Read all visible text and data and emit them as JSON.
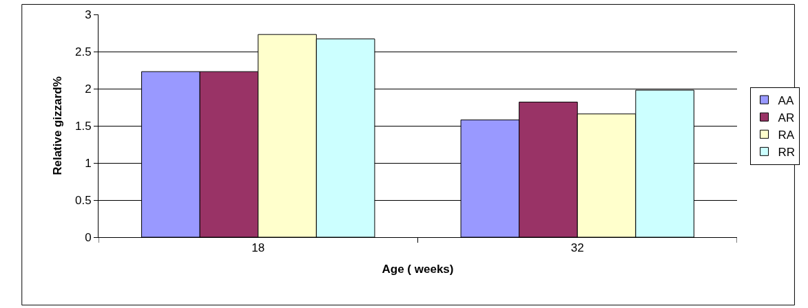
{
  "chart_data": {
    "type": "bar",
    "xlabel": "Age ( weeks)",
    "ylabel": "Relative gizzard%",
    "categories": [
      "18",
      "32"
    ],
    "series": [
      {
        "name": "AA",
        "color": "#9999ff",
        "values": [
          2.23,
          1.58
        ]
      },
      {
        "name": "AR",
        "color": "#993366",
        "values": [
          2.23,
          1.82
        ]
      },
      {
        "name": "RA",
        "color": "#ffffcc",
        "values": [
          2.73,
          1.66
        ]
      },
      {
        "name": "RR",
        "color": "#ccffff",
        "values": [
          2.67,
          1.98
        ]
      }
    ],
    "ylim": [
      0,
      3
    ],
    "yticks": [
      0,
      0.5,
      1,
      1.5,
      2,
      2.5,
      3
    ],
    "grid": "y",
    "legend": "right"
  }
}
